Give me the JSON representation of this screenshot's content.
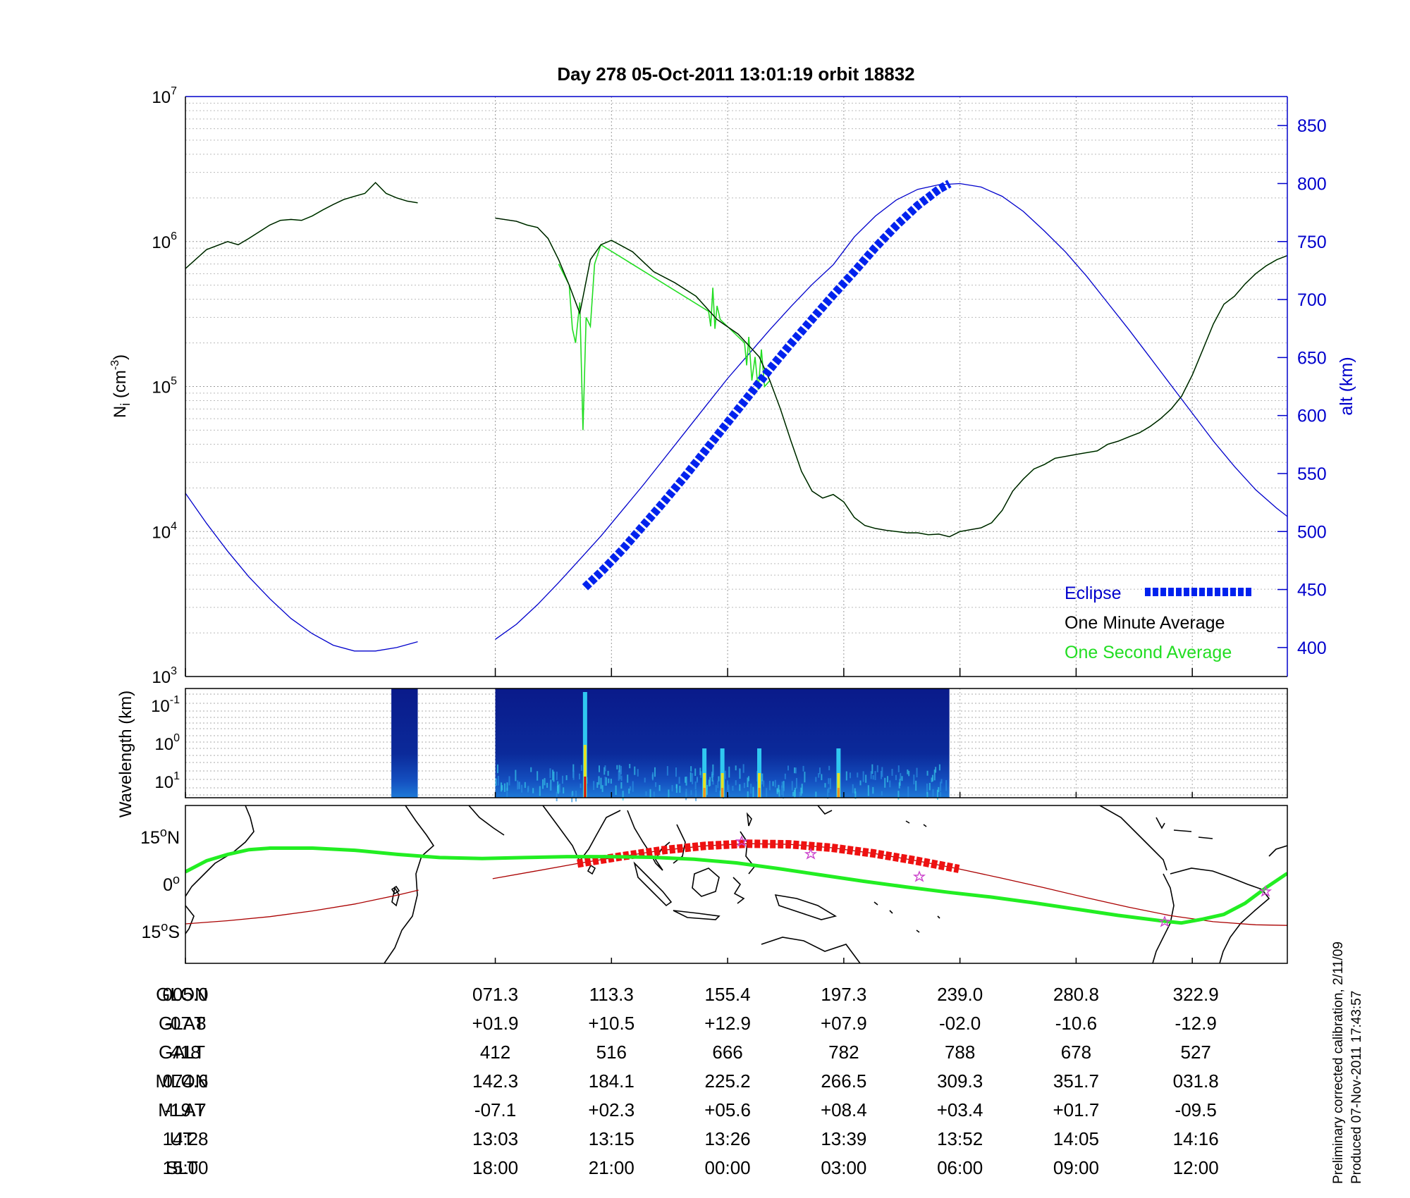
{
  "title": "Day 278  05-Oct-2011 13:01:19   orbit 18832",
  "colors": {
    "axis_right": "#0000cc",
    "one_minute": "#000000",
    "one_second": "#22dd22",
    "eclipse": "#0022ee",
    "orbit_map": "#22ee22",
    "map_track": "#aa0000",
    "map_eclipse": "#ee1111"
  },
  "chart_data": [
    {
      "type": "line",
      "name": "density-panel",
      "ylabel_left": "N_i (cm^-3)",
      "ylabel_right": "alt (km)",
      "left_axis": {
        "scale": "log",
        "ylim": [
          1000,
          10000000
        ],
        "ticks": [
          {
            "base": "10",
            "exp": "3"
          },
          {
            "base": "10",
            "exp": "4"
          },
          {
            "base": "10",
            "exp": "5"
          },
          {
            "base": "10",
            "exp": "6"
          },
          {
            "base": "10",
            "exp": "7"
          }
        ]
      },
      "right_axis": {
        "ylim": [
          375,
          875
        ],
        "ticks": [
          "400",
          "450",
          "500",
          "550",
          "600",
          "650",
          "700",
          "750",
          "800",
          "850"
        ]
      },
      "x_axis": {
        "unit": "minute of orbit",
        "xlim": [
          0,
          104
        ],
        "gap": [
          22,
          29
        ],
        "grid": true
      },
      "legend": {
        "placement": "bottom-right",
        "items": [
          "Eclipse",
          "One Minute Average",
          "One Second Average"
        ]
      },
      "series": [
        {
          "name": "One Minute Average",
          "axis": "left",
          "x": [
            0,
            2,
            4,
            5,
            6,
            8,
            9,
            10,
            11,
            12,
            13,
            14,
            15,
            16,
            17,
            18,
            19,
            20,
            21,
            22,
            29,
            31,
            32,
            33,
            34,
            35,
            36,
            37,
            38,
            39,
            40,
            42,
            44,
            46,
            48,
            50,
            52,
            54,
            55,
            56,
            57,
            58,
            59,
            60,
            61,
            62,
            63,
            64,
            65,
            66,
            67,
            68,
            69,
            70,
            71,
            72,
            73,
            74,
            75,
            76,
            77,
            78,
            79,
            80,
            81,
            82,
            83,
            84,
            85,
            86,
            87,
            88,
            89,
            90,
            91,
            92,
            93,
            94,
            95,
            96,
            97,
            98,
            99,
            100,
            101,
            102,
            103,
            104
          ],
          "y": [
            650000,
            880000,
            1000000,
            950000,
            1050000,
            1300000,
            1400000,
            1420000,
            1400000,
            1500000,
            1650000,
            1800000,
            1950000,
            2050000,
            2150000,
            2550000,
            2150000,
            2000000,
            1900000,
            1850000,
            1450000,
            1380000,
            1300000,
            1250000,
            1050000,
            750000,
            500000,
            320000,
            750000,
            950000,
            1020000,
            850000,
            620000,
            520000,
            420000,
            290000,
            230000,
            160000,
            110000,
            70000,
            42000,
            26000,
            19000,
            17000,
            18000,
            16000,
            12500,
            11000,
            10500,
            10200,
            10000,
            9800,
            9800,
            9500,
            9600,
            9200,
            10000,
            10300,
            10600,
            11500,
            14000,
            19000,
            23000,
            27000,
            29000,
            32000,
            33000,
            34000,
            35000,
            36000,
            40000,
            42000,
            45000,
            48000,
            53000,
            60000,
            70000,
            86000,
            120000,
            180000,
            270000,
            370000,
            420000,
            510000,
            600000,
            680000,
            750000,
            800000
          ]
        },
        {
          "name": "One Second Average",
          "axis": "left",
          "x": [
            35,
            36,
            36.3,
            36.6,
            37,
            37.3,
            37.6,
            38,
            38.4,
            39,
            49.2,
            49.4,
            49.6,
            49.8,
            50,
            50.3,
            52.6,
            52.8,
            53,
            53.3,
            53.6,
            53.9,
            54.2,
            54.5,
            55
          ],
          "y": [
            700000,
            500000,
            250000,
            200000,
            380000,
            50000,
            300000,
            260000,
            700000,
            950000,
            330000,
            260000,
            480000,
            250000,
            360000,
            290000,
            200000,
            140000,
            220000,
            110000,
            160000,
            95000,
            180000,
            100000,
            110000
          ]
        },
        {
          "name": "Orbit altitude",
          "axis": "right",
          "x": [
            0,
            2,
            4,
            6,
            8,
            10,
            12,
            14,
            16,
            18,
            20,
            22,
            29,
            31,
            33,
            35,
            37,
            39,
            41,
            43,
            45,
            47,
            49,
            51,
            53,
            55,
            57,
            59,
            61,
            63,
            65,
            67,
            69,
            71,
            73,
            75,
            77,
            79,
            81,
            83,
            85,
            87,
            89,
            91,
            93,
            95,
            97,
            99,
            101,
            103,
            104
          ],
          "y": [
            533,
            507,
            483,
            461,
            442,
            425,
            412,
            402,
            397,
            397,
            400,
            405,
            407,
            420,
            437,
            456,
            476,
            496,
            518,
            540,
            563,
            586,
            609,
            632,
            653,
            674,
            694,
            713,
            730,
            754,
            772,
            786,
            795,
            799,
            800,
            797,
            789,
            776,
            759,
            741,
            720,
            697,
            674,
            650,
            626,
            602,
            578,
            556,
            536,
            520,
            513
          ]
        },
        {
          "name": "Eclipse",
          "axis": "right",
          "x": [
            37.5,
            39,
            41,
            43,
            45,
            47,
            49,
            51,
            53,
            55,
            57,
            59,
            61,
            63,
            65,
            67,
            69,
            71,
            72
          ],
          "y": [
            452,
            465,
            484,
            505,
            526,
            548,
            571,
            594,
            617,
            640,
            662,
            683,
            704,
            724,
            745,
            764,
            781,
            795,
            800
          ]
        }
      ]
    },
    {
      "type": "heatmap",
      "name": "spectrogram-panel",
      "ylabel": "Wavelength (km)",
      "y_ticks": [
        {
          "base": "10",
          "exp": "-1"
        },
        {
          "base": "10",
          "exp": "0"
        },
        {
          "base": "10",
          "exp": "1"
        }
      ],
      "data_spans_minutes": [
        [
          19.5,
          22
        ],
        [
          29,
          72
        ]
      ],
      "bright_columns_minutes": [
        37.5,
        48.8,
        50.5,
        54,
        61.5
      ]
    },
    {
      "type": "line",
      "name": "map-panel",
      "y_ticks": [
        {
          "val": "15",
          "sym": "o",
          "hem": "N"
        },
        {
          "val": "0",
          "sym": "o",
          "hem": ""
        },
        {
          "val": "15",
          "sym": "o",
          "hem": "S"
        }
      ],
      "ylim": [
        -25,
        25
      ],
      "series": [
        {
          "name": "Satellite track",
          "x": [
            0,
            4,
            8,
            12,
            16,
            20,
            22,
            29,
            33,
            37,
            41,
            45,
            49,
            53,
            57,
            61,
            65,
            69,
            73,
            77,
            81,
            85,
            89,
            93,
            97,
            101,
            104
          ],
          "y": [
            -12.5,
            -11.5,
            -10.2,
            -8.4,
            -6.2,
            -3.4,
            -1.8,
            1.8,
            4.2,
            6.6,
            8.8,
            10.8,
            12.2,
            12.9,
            12.7,
            11.6,
            9.8,
            7.5,
            4.9,
            2.0,
            -1.0,
            -4.2,
            -7.2,
            -9.9,
            -11.8,
            -12.8,
            -13
          ]
        },
        {
          "name": "Orbit-Map",
          "x": [
            0,
            2,
            4,
            6,
            8,
            12,
            16,
            20,
            24,
            28,
            32,
            36,
            40,
            44,
            48,
            52,
            56,
            60,
            64,
            68,
            72,
            76,
            80,
            84,
            88,
            92,
            94,
            96,
            98,
            100,
            102,
            104
          ],
          "y": [
            4,
            7.5,
            9.5,
            11,
            11.5,
            11.5,
            10.8,
            9.5,
            8.5,
            8.2,
            8.5,
            8.8,
            8.8,
            8.6,
            8,
            6.8,
            5,
            3,
            1,
            -0.8,
            -2.5,
            -4,
            -5.8,
            -7.8,
            -9.8,
            -11.5,
            -12.2,
            -11,
            -9.5,
            -6,
            -1,
            3.5
          ]
        }
      ]
    }
  ],
  "table": {
    "rows": [
      {
        "label": "GLON",
        "values": [
          "005.0",
          "071.3",
          "113.3",
          "155.4",
          "197.3",
          "239.0",
          "280.8",
          "322.9"
        ]
      },
      {
        "label": "GLAT",
        "values": [
          "-07.8",
          "+01.9",
          "+10.5",
          "+12.9",
          "+07.9",
          "-02.0",
          "-10.6",
          "-12.9"
        ]
      },
      {
        "label": "GALT",
        "values": [
          "418",
          "412",
          "516",
          "666",
          "782",
          "788",
          "678",
          "527"
        ]
      },
      {
        "label": "MLON",
        "values": [
          "074.6",
          "142.3",
          "184.1",
          "225.2",
          "266.5",
          "309.3",
          "351.7",
          "031.8"
        ]
      },
      {
        "label": "MLAT",
        "values": [
          "-19.7",
          "-07.1",
          "+02.3",
          "+05.6",
          "+08.4",
          "+03.4",
          "+01.7",
          "-09.5"
        ]
      },
      {
        "label": "UT",
        "values": [
          "14:28",
          "13:03",
          "13:15",
          "13:26",
          "13:39",
          "13:52",
          "14:05",
          "14:16"
        ]
      },
      {
        "label": "SLT",
        "values": [
          "15:00",
          "18:00",
          "21:00",
          "00:00",
          "03:00",
          "06:00",
          "09:00",
          "12:00"
        ]
      }
    ]
  },
  "footnote": {
    "line1": "Preliminary corrected calibration, 2/11/09",
    "line2": "Produced 07-Nov-2011 17:43:57"
  }
}
